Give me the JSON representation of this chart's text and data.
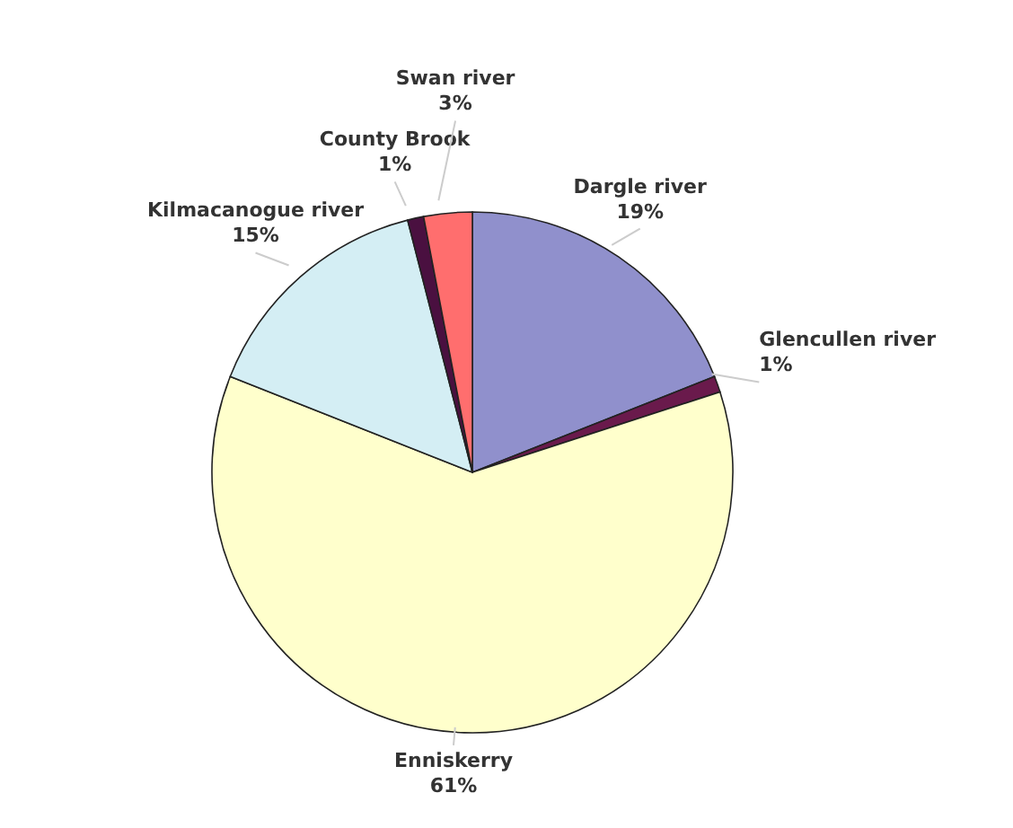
{
  "chart_data": {
    "type": "pie",
    "categories": [
      "Dargle river",
      "Glencullen river",
      "Enniskerry",
      "Kilmacanogue river",
      "County Brook",
      "Swan river"
    ],
    "values": [
      19,
      1,
      61,
      15,
      1,
      3
    ],
    "value_labels": [
      "19%",
      "1%",
      "61%",
      "15%",
      "1%",
      "3%"
    ],
    "colors": [
      "#9090cc",
      "#6a1a4c",
      "#ffffcc",
      "#d4eef4",
      "#4a1040",
      "#ff6e6e"
    ]
  }
}
